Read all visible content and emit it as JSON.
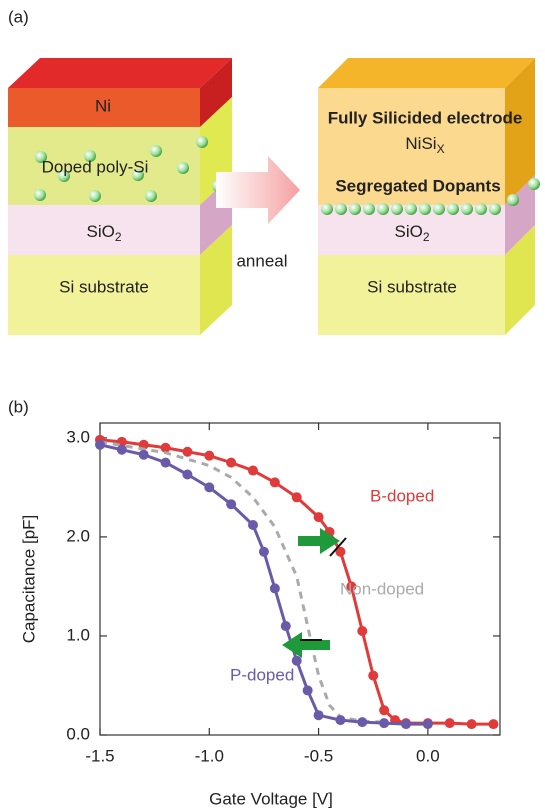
{
  "panel_a": {
    "label": "(a)",
    "before": {
      "ni": "Ni",
      "poly": "Doped poly-Si",
      "oxide": {
        "main": "SiO",
        "sub": "2"
      },
      "substrate": "Si substrate"
    },
    "arrow_label": "anneal",
    "after": {
      "electrode_title": "Fully Silicided electrode",
      "silicide": {
        "main": "NiSi",
        "sub": "X"
      },
      "dopants": "Segregated Dopants",
      "oxide": {
        "main": "SiO",
        "sub": "2"
      },
      "substrate": "Si substrate"
    }
  },
  "panel_b_label": "(b)",
  "chart_data": {
    "type": "line",
    "x_label": "Gate Voltage [V]",
    "y_label": "Capacitance   [pF]",
    "xlim": [
      -1.5,
      0.33
    ],
    "ylim": [
      0,
      3.15
    ],
    "xticks": [
      -1.5,
      {
        "value": -1,
        "label": "-1.0"
      },
      -0.5,
      {
        "value": 0,
        "label": "0.0"
      }
    ],
    "yticks": [
      {
        "value": 0,
        "label": "0.0"
      },
      {
        "value": 1,
        "label": "1.0"
      },
      {
        "value": 2,
        "label": "2.0"
      },
      {
        "value": 3,
        "label": "3.0"
      }
    ],
    "series": [
      {
        "name": "B-doped",
        "color": "#e03a3a",
        "markers": true,
        "dashed": false,
        "x": [
          -1.5,
          -1.4,
          -1.3,
          -1.2,
          -1.1,
          -1.0,
          -0.9,
          -0.8,
          -0.7,
          -0.6,
          -0.5,
          -0.45,
          -0.4,
          -0.35,
          -0.3,
          -0.25,
          -0.2,
          -0.15,
          -0.1,
          0.0,
          0.1,
          0.2,
          0.3
        ],
        "values": [
          2.98,
          2.96,
          2.93,
          2.9,
          2.86,
          2.82,
          2.75,
          2.67,
          2.55,
          2.4,
          2.2,
          2.05,
          1.85,
          1.5,
          1.05,
          0.6,
          0.25,
          0.15,
          0.12,
          0.12,
          0.12,
          0.11,
          0.11
        ]
      },
      {
        "name": "Non-doped",
        "color": "#aaaaaa",
        "markers": false,
        "dashed": true,
        "x": [
          -1.5,
          -1.2,
          -1.0,
          -0.9,
          -0.8,
          -0.7,
          -0.6,
          -0.55,
          -0.5,
          -0.45,
          -0.4,
          -0.3,
          -0.2
        ],
        "values": [
          2.96,
          2.85,
          2.72,
          2.6,
          2.4,
          2.1,
          1.6,
          1.1,
          0.6,
          0.3,
          0.18,
          0.14,
          0.13
        ]
      },
      {
        "name": "P-doped",
        "color": "#6a5aaa",
        "markers": true,
        "dashed": false,
        "x": [
          -1.5,
          -1.4,
          -1.3,
          -1.2,
          -1.1,
          -1.0,
          -0.9,
          -0.8,
          -0.75,
          -0.7,
          -0.65,
          -0.6,
          -0.55,
          -0.5,
          -0.4,
          -0.3,
          -0.2,
          -0.1,
          0.0
        ],
        "values": [
          2.93,
          2.88,
          2.83,
          2.75,
          2.63,
          2.5,
          2.33,
          2.12,
          1.85,
          1.48,
          1.1,
          0.75,
          0.45,
          0.2,
          0.15,
          0.13,
          0.12,
          0.11,
          0.11
        ]
      }
    ]
  }
}
